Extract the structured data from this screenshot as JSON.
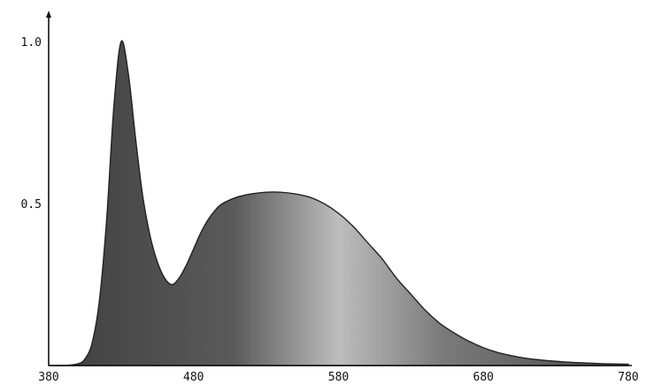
{
  "chart_data": {
    "type": "area",
    "title": "",
    "xlabel": "",
    "ylabel": "",
    "xlim": [
      380,
      780
    ],
    "ylim": [
      0,
      1.0
    ],
    "x_ticks": [
      380,
      480,
      580,
      680,
      780
    ],
    "x_tick_labels": [
      "380",
      "480",
      "580",
      "680",
      "780"
    ],
    "y_ticks": [
      0.5,
      1.0
    ],
    "y_tick_labels": [
      "0.5",
      "1.0"
    ],
    "grid": false,
    "legend": "none",
    "series": [
      {
        "x": [
          380,
          390,
          400,
          405,
          410,
          415,
          420,
          425,
          430,
          435,
          440,
          445,
          450,
          455,
          460,
          465,
          470,
          475,
          480,
          485,
          490,
          495,
          500,
          510,
          520,
          530,
          540,
          550,
          560,
          570,
          580,
          590,
          600,
          610,
          620,
          630,
          640,
          650,
          660,
          670,
          680,
          690,
          700,
          710,
          720,
          730,
          740,
          750,
          760,
          770,
          780
        ],
        "y": [
          0.0,
          0.0,
          0.005,
          0.02,
          0.07,
          0.2,
          0.45,
          0.8,
          1.0,
          0.9,
          0.7,
          0.52,
          0.4,
          0.32,
          0.27,
          0.25,
          0.27,
          0.31,
          0.36,
          0.41,
          0.45,
          0.48,
          0.5,
          0.52,
          0.53,
          0.535,
          0.535,
          0.53,
          0.52,
          0.5,
          0.47,
          0.43,
          0.38,
          0.33,
          0.27,
          0.22,
          0.17,
          0.13,
          0.1,
          0.075,
          0.055,
          0.04,
          0.03,
          0.022,
          0.017,
          0.013,
          0.01,
          0.008,
          0.006,
          0.005,
          0.004
        ]
      }
    ]
  },
  "colors": {
    "fill_dark": "#3f3f3f",
    "fill_light": "#b9b9b9",
    "outline": "#222222",
    "axis": "#111111"
  }
}
